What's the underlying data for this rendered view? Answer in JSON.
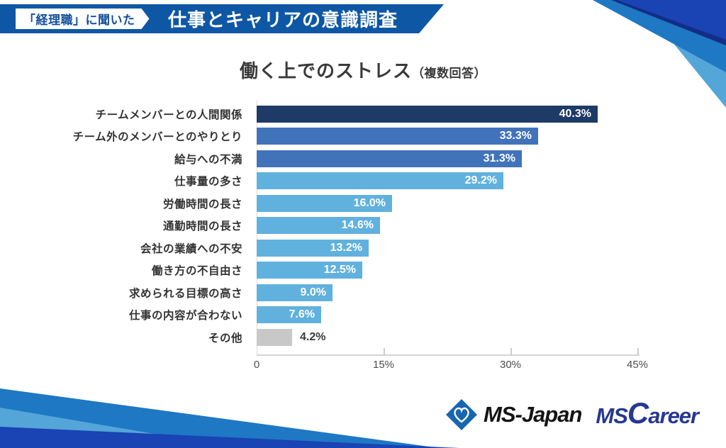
{
  "header": {
    "badge": "「経理職」に聞いた",
    "title": "仕事とキャリアの意識調査"
  },
  "chart": {
    "title": "働く上でのストレス",
    "subtitle": "（複数回答）"
  },
  "chart_data": {
    "type": "bar",
    "orientation": "horizontal",
    "title": "働く上でのストレス（複数回答）",
    "categories": [
      "チームメンバーとの人間関係",
      "チーム外のメンバーとのやりとり",
      "給与への不満",
      "仕事量の多さ",
      "労働時間の長さ",
      "通勤時間の長さ",
      "会社の業績への不安",
      "働き方の不自由さ",
      "求められる目標の高さ",
      "仕事の内容が合わない",
      "その他"
    ],
    "values": [
      40.3,
      33.3,
      31.3,
      29.2,
      16.0,
      14.6,
      13.2,
      12.5,
      9.0,
      7.6,
      4.2
    ],
    "value_labels": [
      "40.3%",
      "33.3%",
      "31.3%",
      "29.2%",
      "16.0%",
      "14.6%",
      "13.2%",
      "12.5%",
      "9.0%",
      "7.6%",
      "4.2%"
    ],
    "bar_colors": [
      "#1E3A66",
      "#4173BA",
      "#4173BA",
      "#61B1DE",
      "#61B1DE",
      "#61B1DE",
      "#61B1DE",
      "#61B1DE",
      "#61B1DE",
      "#61B1DE",
      "#C8C8C8"
    ],
    "value_label_inside": [
      true,
      true,
      true,
      true,
      true,
      true,
      true,
      true,
      true,
      true,
      false
    ],
    "xlim": [
      0,
      45
    ],
    "x_ticks": [
      0,
      15,
      30,
      45
    ],
    "x_tick_labels": [
      "0",
      "15%",
      "30%",
      "45%"
    ],
    "grid": false,
    "legend": null
  },
  "footer": {
    "msjapan_label": "MS-Japan",
    "mscareer_ms": "MS",
    "mscareer_c": "C",
    "mscareer_rest": "areer"
  },
  "colors": {
    "banner_blue": "#0E57A5",
    "badge_text": "#14509E",
    "bar_navy": "#1E3A66",
    "bar_blue": "#4173BA",
    "bar_light_blue": "#61B1DE",
    "bar_gray": "#C8C8C8",
    "deco_royal": "#1A43B4",
    "deco_navy": "#122E85",
    "deco_medium": "#1E78C4",
    "deco_light": "#54A5D8",
    "mscareer_text": "#27388F"
  }
}
